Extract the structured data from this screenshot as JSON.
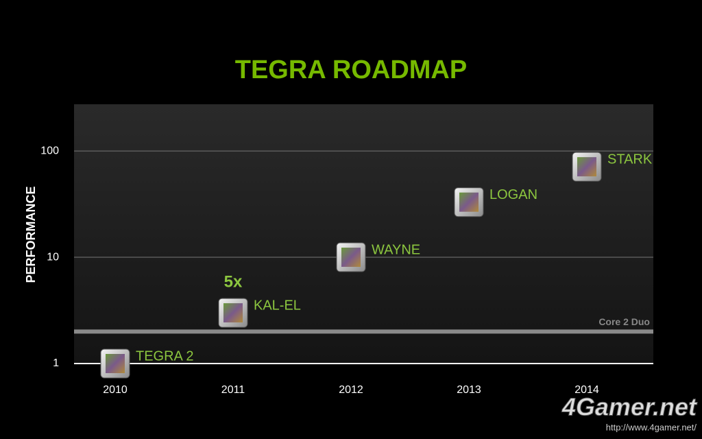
{
  "chart_data": {
    "type": "scatter",
    "title": "TEGRA ROADMAP",
    "y_label": "PERFORMANCE",
    "categories": [
      "2010",
      "2011",
      "2012",
      "2013",
      "2014"
    ],
    "values": [
      1,
      3,
      10,
      33,
      71
    ],
    "labels": [
      "TEGRA 2",
      "KAL-EL",
      "WAYNE",
      "LOGAN",
      "STARK"
    ],
    "color": "#8cc63f",
    "ylim": [
      1,
      275
    ],
    "yticks": [
      1,
      10,
      100
    ],
    "log_y": true,
    "grid": true,
    "reference": {
      "value": 2,
      "label": "Core 2 Duo"
    },
    "annotation": {
      "text": "5x",
      "category": 1
    }
  },
  "watermark": {
    "logo": "4Gamer.net",
    "url": "http://www.4gamer.net/"
  }
}
